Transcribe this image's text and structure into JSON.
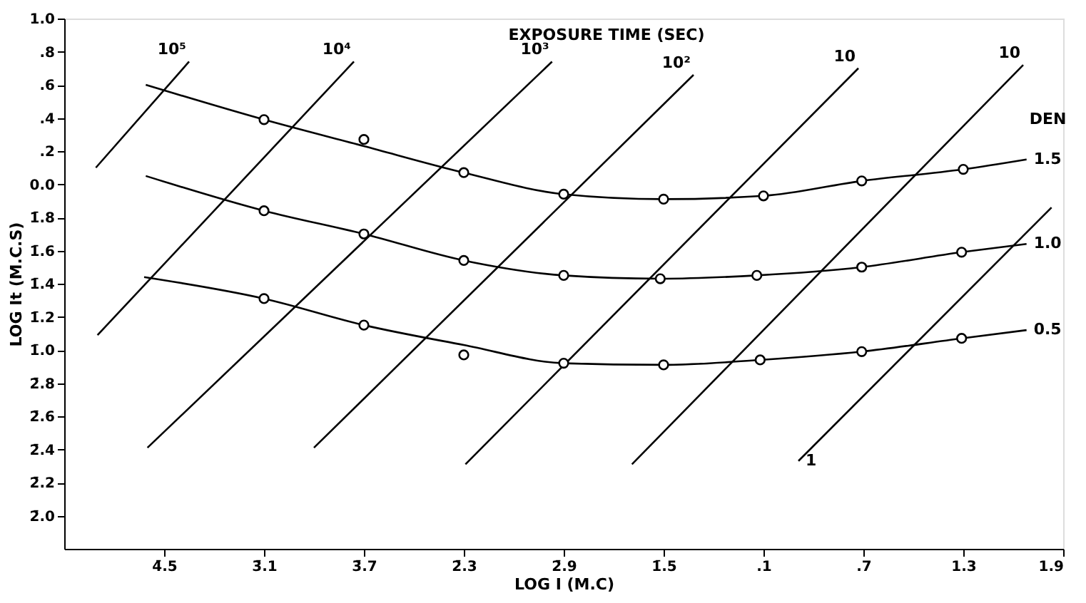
{
  "chart_data": {
    "type": "line",
    "title": "EXPOSURE TIME (SEC)",
    "xlabel": "LOG I (M.C)",
    "ylabel": "LOG It (M.C.S)",
    "legend_title": "DEN",
    "xlim": [
      -4.1,
      1.9
    ],
    "ylim": [
      -2.2,
      1.0
    ],
    "xticks": [
      {
        "value": -3.5,
        "label": "4̄.5"
      },
      {
        "value": -2.9,
        "label": "3̄.1"
      },
      {
        "value": -2.3,
        "label": "3̄.7"
      },
      {
        "value": -1.7,
        "label": "2̄.3"
      },
      {
        "value": -1.1,
        "label": "2̄.9"
      },
      {
        "value": -0.5,
        "label": "1̄.5"
      },
      {
        "value": 0.1,
        "label": ".1"
      },
      {
        "value": 0.7,
        "label": ".7"
      },
      1.3,
      1.9
    ],
    "yticks": [
      {
        "value": -2.0,
        "label": "2̄.0"
      },
      {
        "value": -1.8,
        "label": "2̄.2"
      },
      {
        "value": -1.6,
        "label": "2̄.4"
      },
      {
        "value": -1.4,
        "label": "2̄.6"
      },
      {
        "value": -1.2,
        "label": "2̄.8"
      },
      {
        "value": -1.0,
        "label": "1̄.0"
      },
      {
        "value": -0.8,
        "label": "1̄.2"
      },
      {
        "value": -0.6,
        "label": "1̄.4"
      },
      {
        "value": -0.4,
        "label": "1̄.6"
      },
      {
        "value": -0.2,
        "label": "1̄.8"
      },
      {
        "value": 0.0,
        "label": "0.0"
      },
      {
        "value": 0.2,
        "label": ".2"
      },
      {
        "value": 0.4,
        "label": ".4"
      },
      {
        "value": 0.6,
        "label": ".6"
      },
      {
        "value": 0.8,
        "label": ".8"
      },
      {
        "value": 1.0,
        "label": "1.0"
      }
    ],
    "grid": false,
    "marker": "none",
    "line_style": "solid",
    "series": [
      {
        "name": "10⁵",
        "color": "#000000",
        "type": "line",
        "x": [
          -3.91,
          -3.35
        ],
        "values": [
          0.1,
          0.74
        ]
      },
      {
        "name": "10⁴",
        "color": "#000000",
        "type": "line",
        "x": [
          -3.9,
          -2.36
        ],
        "values": [
          -0.91,
          0.74
        ]
      },
      {
        "name": "10³",
        "color": "#000000",
        "type": "line",
        "x": [
          -3.6,
          -1.17
        ],
        "values": [
          -1.59,
          0.74
        ]
      },
      {
        "name": "10²",
        "color": "#000000",
        "type": "line",
        "x": [
          -2.6,
          -0.32
        ],
        "values": [
          -1.59,
          0.66
        ]
      },
      {
        "name": "10",
        "color": "#000000",
        "type": "line",
        "x": [
          -1.69,
          0.67
        ],
        "values": [
          -1.69,
          0.7
        ]
      },
      {
        "name": "10",
        "color": "#000000",
        "type": "line",
        "x": [
          -0.69,
          1.66
        ],
        "values": [
          -1.69,
          0.72
        ]
      },
      {
        "name": "1",
        "color": "#000000",
        "type": "line",
        "x": [
          1.83,
          0.31
        ],
        "values": [
          -0.14,
          -1.67
        ]
      },
      {
        "name": "1.5",
        "color": "#000000",
        "x": [
          -3.61,
          -2.9,
          -2.3,
          -1.7,
          -1.1,
          -0.5,
          0.1,
          0.69,
          1.3,
          1.68
        ],
        "values": [
          0.6,
          0.39,
          0.23,
          0.07,
          -0.06,
          -0.09,
          -0.07,
          0.02,
          0.09,
          0.15
        ]
      },
      {
        "name": "1.0",
        "color": "#000000",
        "x": [
          -3.61,
          -2.9,
          -2.3,
          -1.7,
          -1.1,
          -0.52,
          0.06,
          0.69,
          1.29,
          1.68
        ],
        "values": [
          0.05,
          -0.16,
          -0.3,
          -0.46,
          -0.55,
          -0.57,
          -0.55,
          -0.5,
          -0.41,
          -0.36
        ]
      },
      {
        "name": "0.5",
        "color": "#000000",
        "x": [
          -3.62,
          -2.9,
          -2.3,
          -1.7,
          -1.1,
          -0.5,
          0.08,
          0.69,
          1.29,
          1.68
        ],
        "values": [
          -0.56,
          -0.69,
          -0.85,
          -0.97,
          -1.08,
          -1.09,
          -1.06,
          -1.01,
          -0.93,
          -0.88
        ]
      },
      {
        "color": "#000000",
        "type": "scatter",
        "marker": "circle",
        "x": [
          -2.9,
          -2.3,
          -1.7,
          -1.1,
          -0.5,
          0.1,
          0.69,
          1.3
        ],
        "values": [
          0.39,
          0.27,
          0.07,
          -0.06,
          -0.09,
          -0.07,
          0.02,
          0.09
        ]
      },
      {
        "color": "#000000",
        "type": "scatter",
        "marker": "circle",
        "x": [
          -2.9,
          -2.3,
          -1.7,
          -1.1,
          -0.52,
          0.06,
          0.69,
          1.29
        ],
        "values": [
          -0.16,
          -0.3,
          -0.46,
          -0.55,
          -0.57,
          -0.55,
          -0.5,
          -0.41
        ]
      },
      {
        "color": "#000000",
        "type": "scatter",
        "marker": "circle",
        "x": [
          -2.9,
          -2.3,
          -1.7,
          -1.1,
          -0.5,
          0.08,
          0.69,
          1.29
        ],
        "values": [
          -0.69,
          -0.85,
          -1.03,
          -1.08,
          -1.09,
          -1.06,
          -1.01,
          -0.93
        ]
      }
    ]
  }
}
